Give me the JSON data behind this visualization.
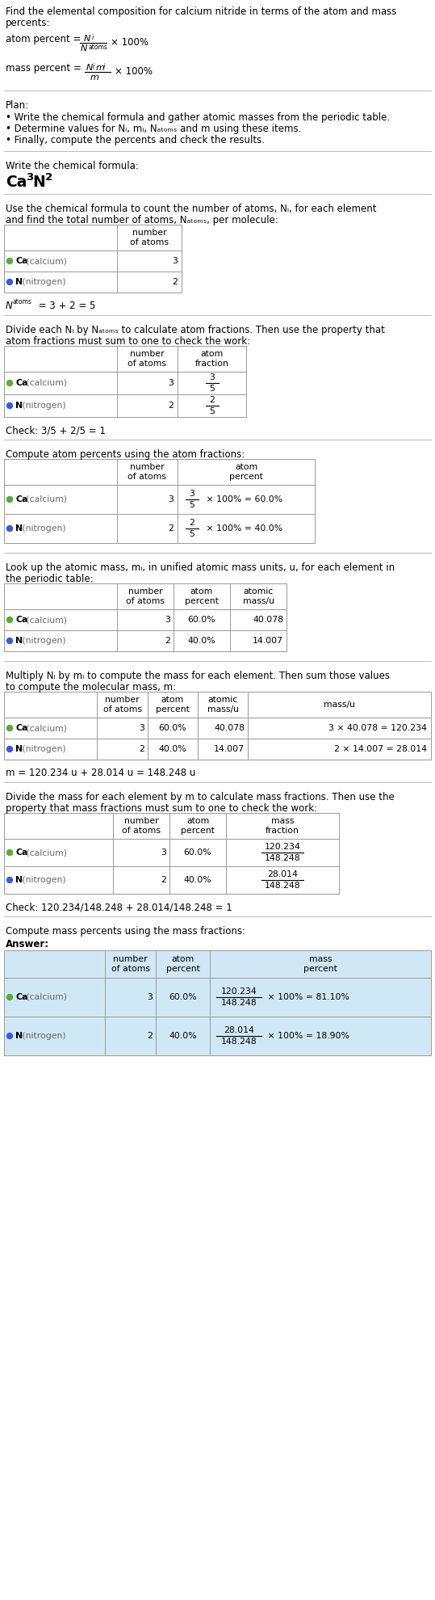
{
  "ca_color": "#5aab2e",
  "n_color": "#3b5bdb",
  "bg_color": "#ffffff",
  "answer_bg": "#d0e8f5",
  "separator_color": "#bbbbbb",
  "table_line_color": "#999999",
  "font_size": 8.5,
  "small_font": 7.8
}
